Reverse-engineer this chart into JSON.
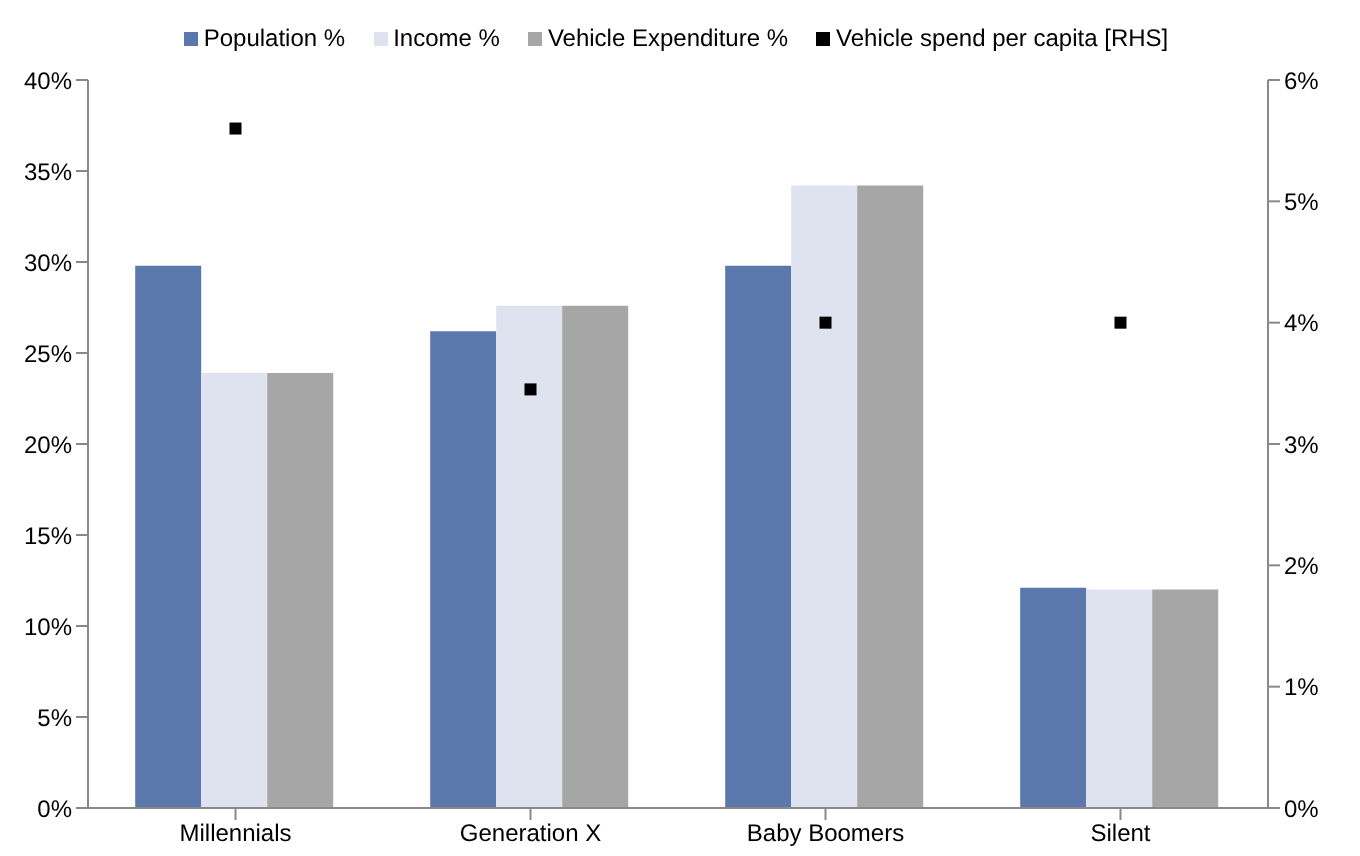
{
  "chart_data": {
    "type": "bar",
    "categories": [
      "Millennials",
      "Generation X",
      "Baby Boomers",
      "Silent"
    ],
    "series": [
      {
        "name": "Population %",
        "color": "#5b78ad",
        "values": [
          29.8,
          26.2,
          29.8,
          12.1
        ]
      },
      {
        "name": "Income %",
        "color": "#dfe3ef",
        "values": [
          23.9,
          27.6,
          34.2,
          12.0
        ]
      },
      {
        "name": "Vehicle Expenditure %",
        "color": "#a6a6a6",
        "values": [
          23.9,
          27.6,
          34.2,
          12.0
        ]
      },
      {
        "name": "Vehicle spend per capita [RHS]",
        "type": "scatter",
        "axis": "y2",
        "marker": "square",
        "color": "#000000",
        "values": [
          5.6,
          3.45,
          4.0,
          4.0
        ]
      }
    ],
    "ylim": [
      0,
      40
    ],
    "yticks": [
      {
        "value": 0,
        "label": "0%"
      },
      {
        "value": 5,
        "label": "5%"
      },
      {
        "value": 10,
        "label": "10%"
      },
      {
        "value": 15,
        "label": "15%"
      },
      {
        "value": 20,
        "label": "20%"
      },
      {
        "value": 25,
        "label": "25%"
      },
      {
        "value": 30,
        "label": "30%"
      },
      {
        "value": 35,
        "label": "35%"
      },
      {
        "value": 40,
        "label": "40%"
      }
    ],
    "y2lim": [
      0,
      6
    ],
    "y2ticks": [
      {
        "value": 0,
        "label": "0%"
      },
      {
        "value": 1,
        "label": "1%"
      },
      {
        "value": 2,
        "label": "2%"
      },
      {
        "value": 3,
        "label": "3%"
      },
      {
        "value": 4,
        "label": "4%"
      },
      {
        "value": 5,
        "label": "5%"
      },
      {
        "value": 6,
        "label": "6%"
      }
    ],
    "grid": false,
    "legend": "top"
  }
}
